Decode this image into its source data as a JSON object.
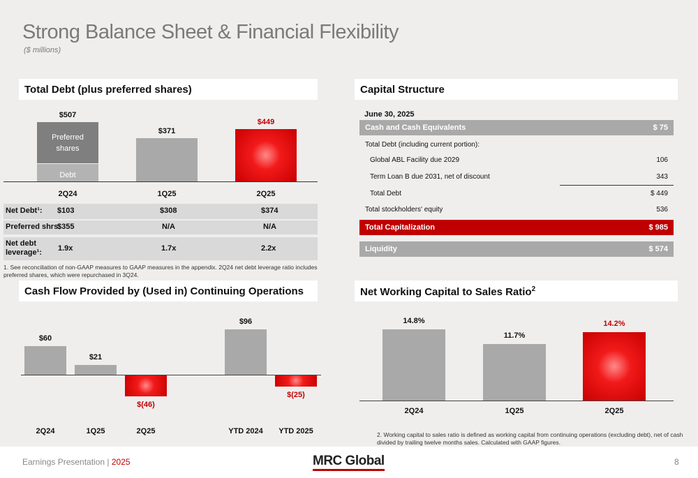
{
  "page": {
    "title": "Strong Balance Sheet & Financial Flexibility",
    "subtitle": "($ millions)"
  },
  "total_debt": {
    "header": "Total Debt  (plus preferred shares)",
    "segment_preferred": "Preferred shares",
    "segment_debt": "Debt",
    "rows": {
      "net_debt_label": "Net Debt¹:",
      "preferred_label": "Preferred shrs:",
      "leverage_label": "Net debt leverage¹:"
    }
  },
  "footnote1": "1.   See reconciliation of non-GAAP measures to GAAP measures in the appendix. 2Q24 net debt leverage ratio includes preferred shares, which were repurchased in 3Q24.",
  "capital_structure": {
    "header": "Capital Structure",
    "date": "June 30, 2025",
    "rows": [
      {
        "label": "Cash and Cash Equivalents",
        "value": "$ 75",
        "style": "gray"
      },
      {
        "label": "Total Debt (including current portion):",
        "value": "",
        "style": "plain"
      },
      {
        "label": "Global ABL Facility due 2029",
        "value": "106",
        "style": "indent"
      },
      {
        "label": "Term Loan B due 2031, net of discount",
        "value": "343",
        "style": "indent-underline"
      },
      {
        "label": "Total Debt",
        "value": "$ 449",
        "style": "indent"
      },
      {
        "label": "Total stockholders' equity",
        "value": "536",
        "style": "plain"
      },
      {
        "label": "Total Capitalization",
        "value": "$ 985",
        "style": "red"
      },
      {
        "label": "Liquidity",
        "value": "$ 574",
        "style": "gray"
      }
    ]
  },
  "cash_flow": {
    "header": "Cash Flow Provided by (Used in) Continuing Operations"
  },
  "nwc": {
    "header": "Net Working Capital to Sales Ratio",
    "header_sup": "2"
  },
  "footnote2": "2.    Working capital to sales ratio is defined as working capital from continuing operations (excluding debt), net of cash divided by trailing twelve months sales. Calculated with GAAP figures.",
  "footer": {
    "left": "Earnings Presentation | ",
    "year": "2025",
    "logo": "MRC Global",
    "page": "8"
  },
  "colors": {
    "accent_red": "#c00000",
    "bar_gray": "#a9a9a9",
    "preferred_gray": "#7f7f7f",
    "row_gray": "#d9d9d9"
  },
  "chart_data": [
    {
      "type": "bar",
      "name_ref": "total_debt",
      "categories": [
        "2Q24",
        "1Q25",
        "2Q25"
      ],
      "series": [
        {
          "name": "Debt",
          "values": [
            152,
            371,
            449
          ]
        },
        {
          "name": "Preferred shares",
          "values": [
            355,
            0,
            0
          ]
        }
      ],
      "total_labels": [
        "$507",
        "$371",
        "$449"
      ],
      "table": {
        "net_debt": [
          "$103",
          "$308",
          "$374"
        ],
        "preferred": [
          "$355",
          "N/A",
          "N/A"
        ],
        "leverage": [
          "1.9x",
          "1.7x",
          "2.2x"
        ]
      },
      "ylim": [
        0,
        507
      ]
    },
    {
      "type": "bar",
      "name_ref": "cash_flow",
      "categories": [
        "2Q24",
        "1Q25",
        "2Q25",
        "YTD 2024",
        "YTD 2025"
      ],
      "values": [
        60,
        21,
        -46,
        96,
        -25
      ],
      "value_labels": [
        "$60",
        "$21",
        "$(46)",
        "$96",
        "$(25)"
      ],
      "ylim": [
        -46,
        96
      ]
    },
    {
      "type": "bar",
      "name_ref": "nwc",
      "categories": [
        "2Q24",
        "1Q25",
        "2Q25"
      ],
      "values": [
        14.8,
        11.7,
        14.2
      ],
      "value_labels": [
        "14.8%",
        "11.7%",
        "14.2%"
      ],
      "ylim": [
        0,
        14.8
      ]
    }
  ]
}
